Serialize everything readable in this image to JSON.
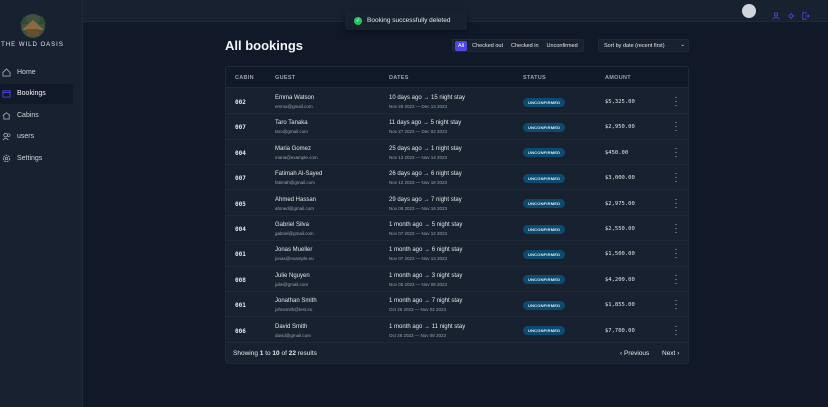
{
  "colors": {
    "accent": "#4f46e5",
    "badge_unconfirmed": "#0c4a6e",
    "toast_success": "#22c55e"
  },
  "brand": {
    "name": "THE WILD OASIS",
    "logo_icon": "cabin-logo-icon"
  },
  "nav": [
    {
      "label": "Home",
      "icon": "home-icon"
    },
    {
      "label": "Bookings",
      "icon": "calendar-icon",
      "active": true
    },
    {
      "label": "Cabins",
      "icon": "cabin-icon"
    },
    {
      "label": "users",
      "icon": "users-icon"
    },
    {
      "label": "Settings",
      "icon": "gear-icon"
    }
  ],
  "header": {
    "icons": [
      "user-icon",
      "sun-icon",
      "logout-icon"
    ]
  },
  "toast": {
    "message": "Booking successfully deleted"
  },
  "page": {
    "title": "All bookings"
  },
  "filters": {
    "options": [
      "All",
      "Checked out",
      "Checked in",
      "Unconfirmed"
    ],
    "active": "All"
  },
  "sort": {
    "value": "Sort by date (recent first)"
  },
  "table": {
    "columns": [
      "CABIN",
      "GUEST",
      "DATES",
      "STATUS",
      "AMOUNT"
    ],
    "rows": [
      {
        "cabin": "002",
        "name": "Emma Watson",
        "email": "emma@gmail.com",
        "dates": "10 days ago → 15 night stay",
        "range": "Nov 28 2023 — Dec 13 2023",
        "status": "UNCONFIRMED",
        "amount": "$5,325.00"
      },
      {
        "cabin": "007",
        "name": "Taro Tanaka",
        "email": "taro@gmail.com",
        "dates": "11 days ago → 5 night stay",
        "range": "Nov 27 2023 — Dec 02 2023",
        "status": "UNCONFIRMED",
        "amount": "$2,950.00"
      },
      {
        "cabin": "004",
        "name": "Maria Gomez",
        "email": "maria@example.com",
        "dates": "25 days ago → 1 night stay",
        "range": "Nov 13 2023 — Nov 14 2023",
        "status": "UNCONFIRMED",
        "amount": "$450.00"
      },
      {
        "cabin": "007",
        "name": "Fatimah Al-Sayed",
        "email": "fatimah@gmail.com",
        "dates": "26 days ago → 6 night stay",
        "range": "Nov 12 2023 — Nov 18 2023",
        "status": "UNCONFIRMED",
        "amount": "$3,000.00"
      },
      {
        "cabin": "005",
        "name": "Ahmed Hassan",
        "email": "ahmed@gmail.com",
        "dates": "29 days ago → 7 night stay",
        "range": "Nov 09 2023 — Nov 16 2023",
        "status": "UNCONFIRMED",
        "amount": "$2,975.00"
      },
      {
        "cabin": "004",
        "name": "Gabriel Silva",
        "email": "gabriel@gmail.com",
        "dates": "1 month ago → 5 night stay",
        "range": "Nov 07 2023 — Nov 12 2023",
        "status": "UNCONFIRMED",
        "amount": "$2,550.00"
      },
      {
        "cabin": "001",
        "name": "Jonas Mueller",
        "email": "jonas@example.eu",
        "dates": "1 month ago → 6 night stay",
        "range": "Nov 07 2023 — Nov 13 2023",
        "status": "UNCONFIRMED",
        "amount": "$1,500.00"
      },
      {
        "cabin": "008",
        "name": "Julie Nguyen",
        "email": "julie@gmail.com",
        "dates": "1 month ago → 3 night stay",
        "range": "Nov 05 2023 — Nov 08 2023",
        "status": "UNCONFIRMED",
        "amount": "$4,200.00"
      },
      {
        "cabin": "001",
        "name": "Jonathan Smith",
        "email": "johnsmith@test.eu",
        "dates": "1 month ago → 7 night stay",
        "range": "Oct 26 2023 — Nov 02 2023",
        "status": "UNCONFIRMED",
        "amount": "$1,855.00"
      },
      {
        "cabin": "006",
        "name": "David Smith",
        "email": "david@gmail.com",
        "dates": "1 month ago → 11 night stay",
        "range": "Oct 28 2023 — Nov 08 2023",
        "status": "UNCONFIRMED",
        "amount": "$7,700.00"
      }
    ]
  },
  "pagination": {
    "prefix": "Showing",
    "from": "1",
    "to_word": "to",
    "to": "10",
    "of_word": "of",
    "total": "22",
    "suffix": "results",
    "previous": "Previous",
    "next": "Next"
  }
}
